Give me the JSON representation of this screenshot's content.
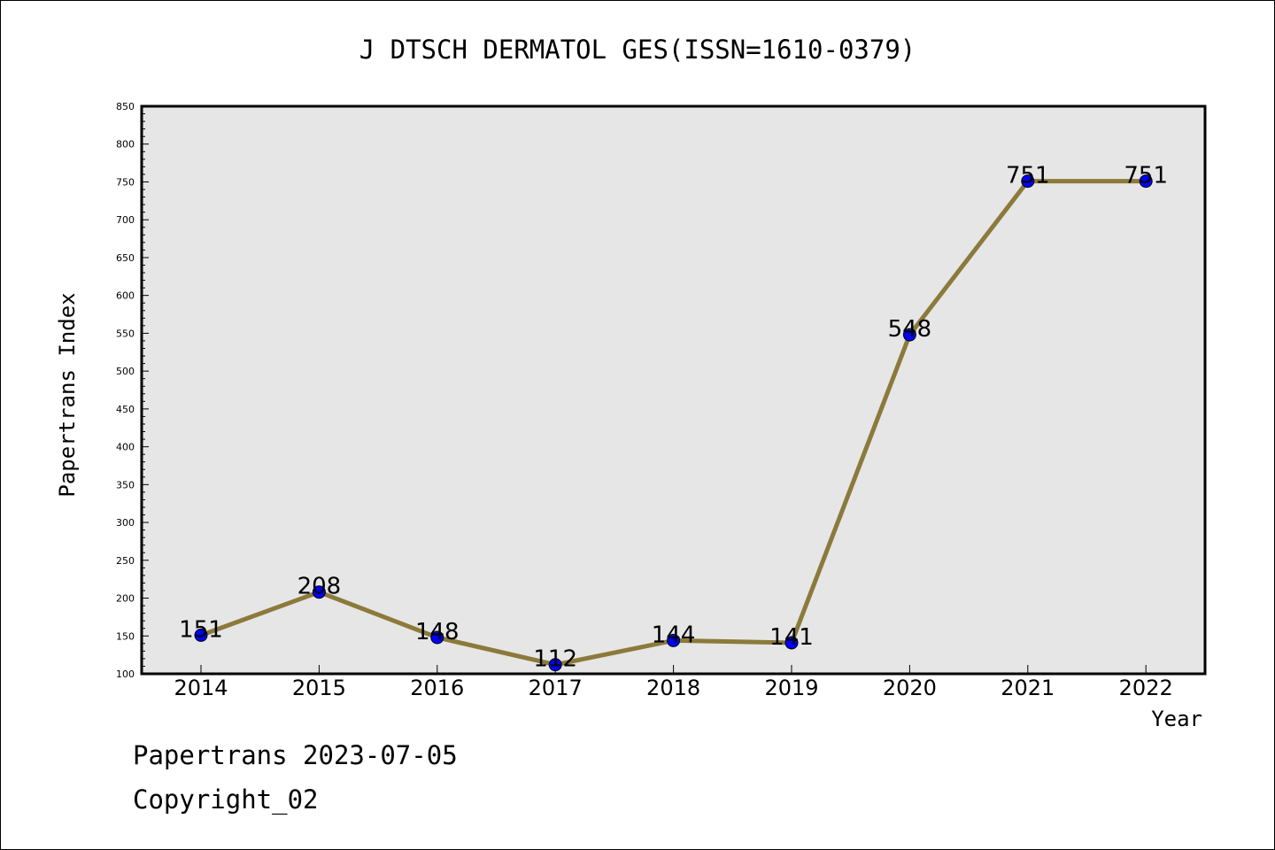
{
  "chart_data": {
    "type": "line",
    "title": "J DTSCH DERMATOL GES(ISSN=1610-0379)",
    "xlabel": "Year",
    "ylabel": "Papertrans Index",
    "categories": [
      "2014",
      "2015",
      "2016",
      "2017",
      "2018",
      "2019",
      "2020",
      "2021",
      "2022"
    ],
    "values": [
      151,
      208,
      148,
      112,
      144,
      141,
      548,
      751,
      751
    ],
    "data_labels": [
      "151",
      "208",
      "148",
      "112",
      "144",
      "141",
      "548",
      "751",
      "751"
    ],
    "ylim": [
      100,
      850
    ],
    "yticks": [
      100,
      150,
      200,
      250,
      300,
      350,
      400,
      450,
      500,
      550,
      600,
      650,
      700,
      750,
      800,
      850
    ],
    "grid": false,
    "colors": {
      "line": "#8B7A3A",
      "marker": "#0000FF",
      "plot_background": "#E6E6E6"
    }
  },
  "footer": {
    "line1": "Papertrans 2023-07-05",
    "line2": "Copyright_02"
  }
}
